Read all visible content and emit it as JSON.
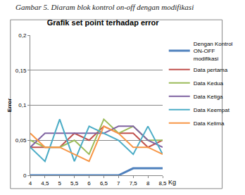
{
  "chart_data": {
    "type": "line",
    "title": "Grafik set point terhadap error",
    "annotations": [
      {
        "text": "Gambar 5. Diaram blok kontrol on-off dengan modifikasi"
      }
    ],
    "x_label": "Kg",
    "y_label": "Error",
    "x": [
      4,
      4.5,
      5,
      5.5,
      6,
      6.5,
      7,
      7.5,
      8,
      8.5
    ],
    "xlim": [
      4,
      8.5
    ],
    "xticks": [
      4,
      {
        "value": 4.5,
        "label": "4,5"
      },
      5,
      {
        "value": 5.5,
        "label": "5,5"
      },
      6,
      {
        "value": 6.5,
        "label": "6,5"
      },
      7,
      {
        "value": 7.5,
        "label": "7,5"
      },
      8,
      {
        "value": 8.5,
        "label": "8,5"
      }
    ],
    "ylim": [
      0,
      0.2
    ],
    "yticks": [
      0,
      {
        "value": 0.05,
        "label": "0,05"
      },
      {
        "value": 0.1,
        "label": "0,1"
      },
      {
        "value": 0.15,
        "label": "0,15"
      },
      {
        "value": 0.2,
        "label": "0,2"
      }
    ],
    "grid": true,
    "legend": "right",
    "series": [
      {
        "name": "Dengan Kontrol ON-OFF modifikasi",
        "color": "#4f81bd",
        "values": [
          0,
          0,
          0,
          0,
          0,
          0,
          0,
          0.01,
          0.01,
          0.01
        ]
      },
      {
        "name": "Data pertama",
        "color": "#c0504d",
        "values": [
          0.04,
          0.04,
          0.04,
          0.06,
          0.05,
          0.07,
          0.06,
          0.06,
          0.04,
          0.05
        ]
      },
      {
        "name": "Data Kedua",
        "color": "#9bbb59",
        "values": [
          0.05,
          0.04,
          0.04,
          0.05,
          0.03,
          0.08,
          0.06,
          0.07,
          0.05,
          0.05
        ]
      },
      {
        "name": "Data Ketiga",
        "color": "#8064a2",
        "values": [
          0.04,
          0.06,
          0.06,
          0.06,
          0.06,
          0.06,
          0.07,
          0.07,
          0.05,
          0.04
        ]
      },
      {
        "name": "Data Keempat",
        "color": "#4bacc6",
        "values": [
          0.04,
          0.02,
          0.08,
          0.02,
          0.07,
          0.06,
          0.05,
          0.03,
          0.07,
          0.03
        ]
      },
      {
        "name": "Data Kelima",
        "color": "#f79646",
        "values": [
          0.06,
          0.04,
          0.04,
          0.03,
          0.02,
          0.07,
          0.06,
          0.04,
          0.04,
          0.03
        ]
      }
    ]
  }
}
